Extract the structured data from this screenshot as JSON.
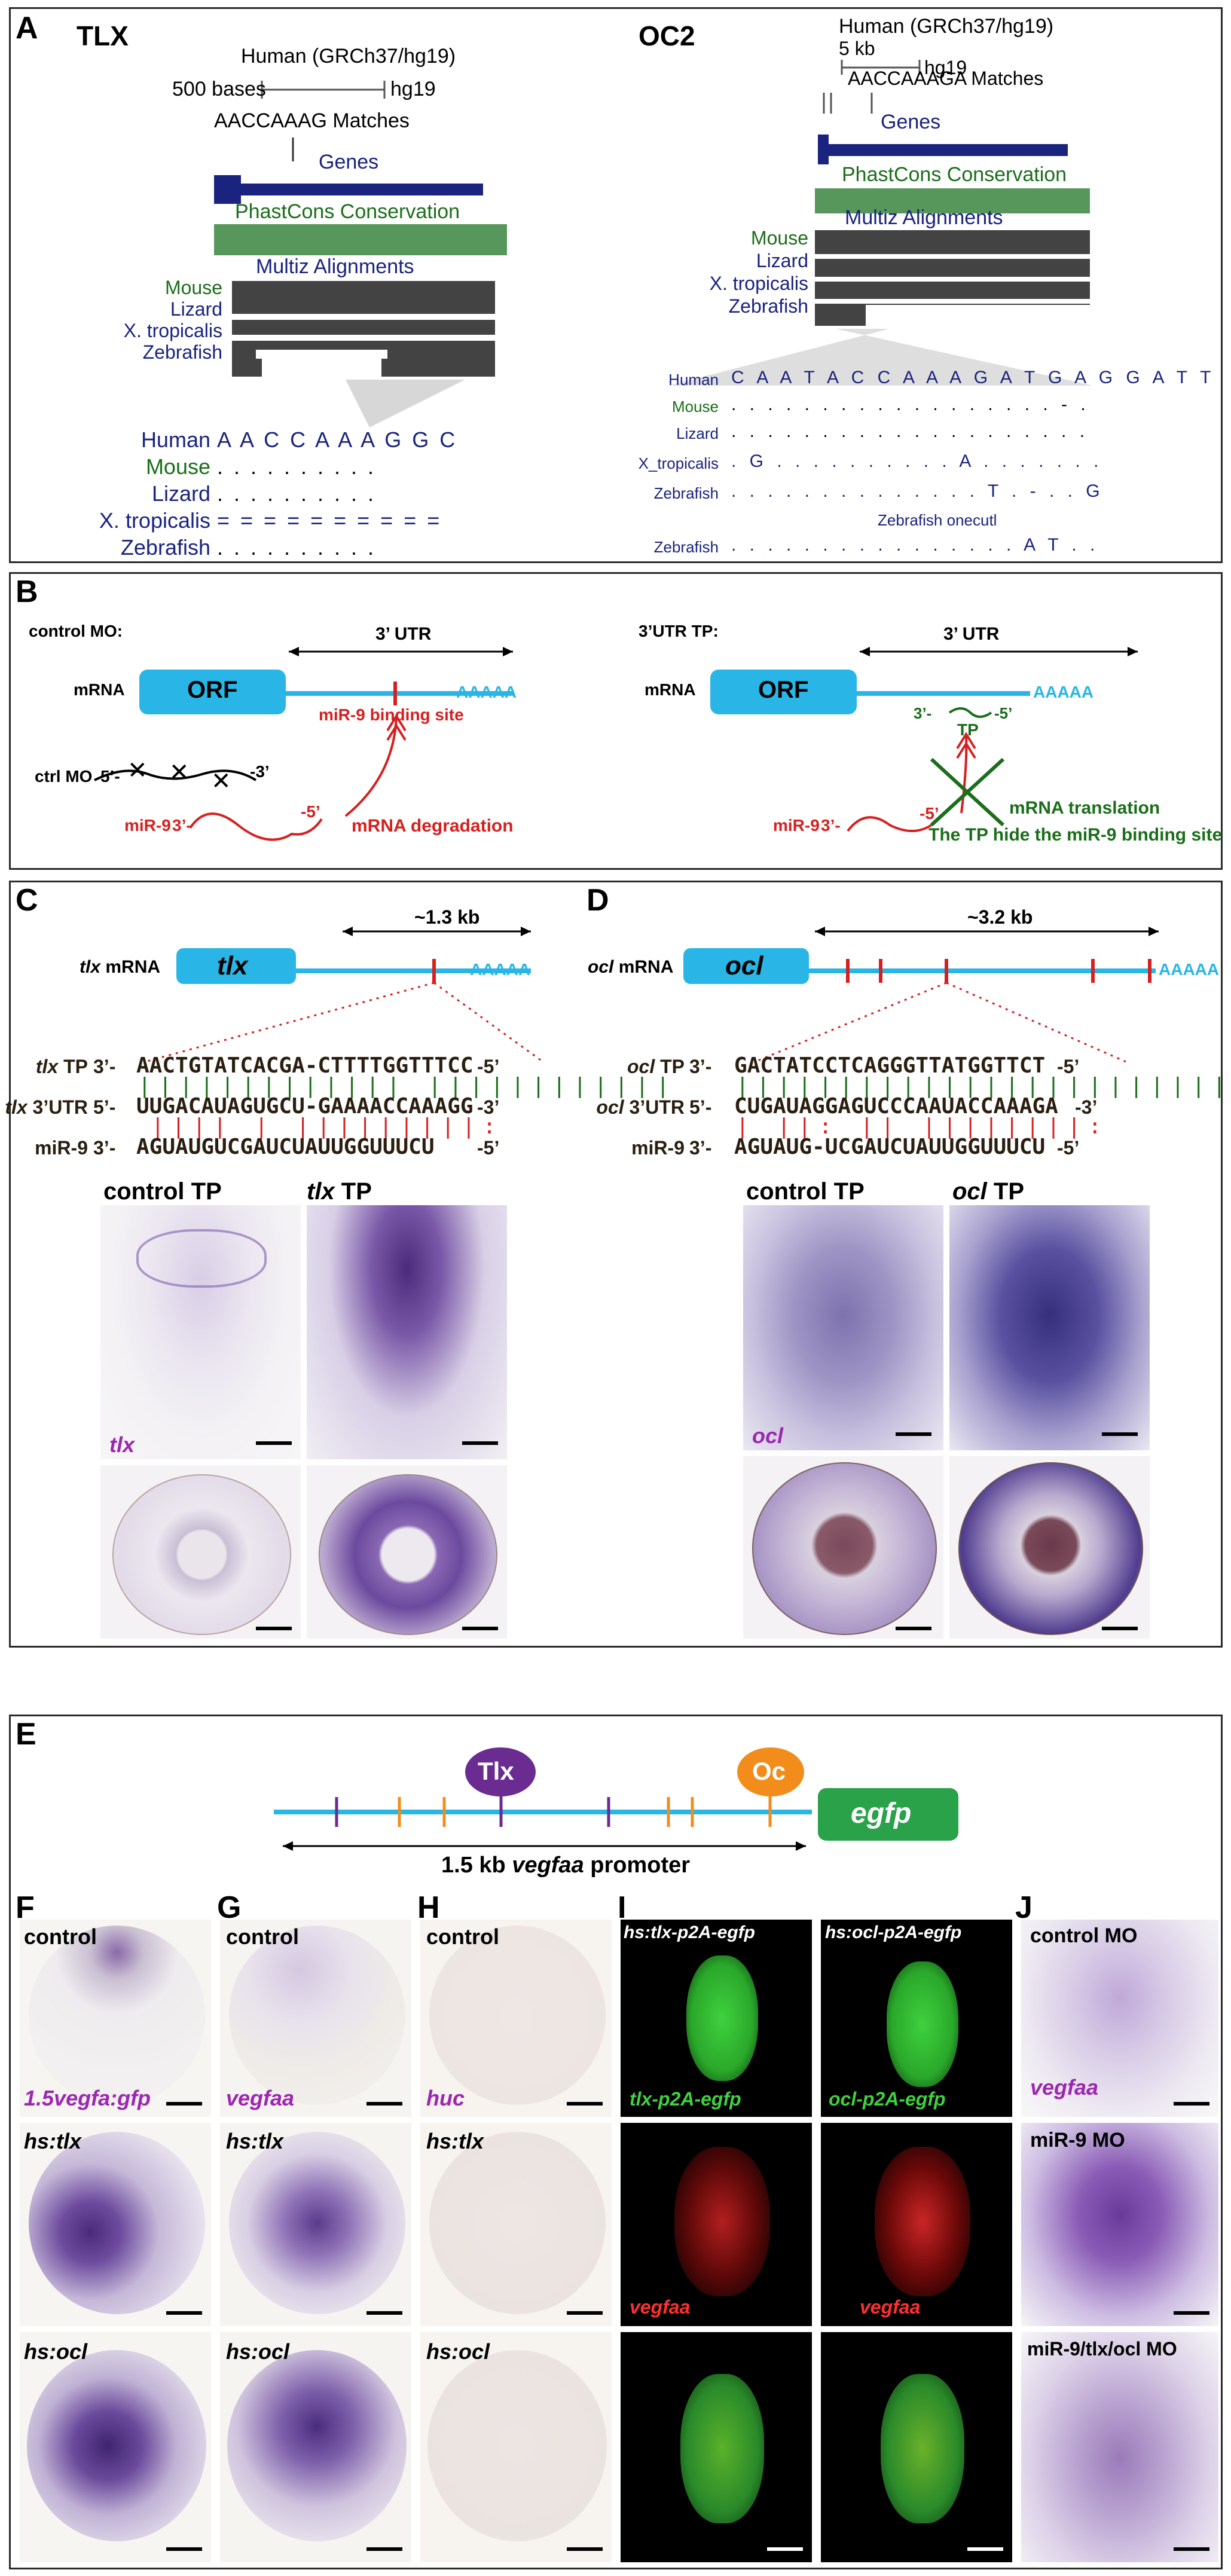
{
  "panelA": {
    "letter": "A",
    "tlx": {
      "title": "TLX",
      "assembly": "Human (GRCh37/hg19)",
      "scale": "500 bases",
      "build": "hg19",
      "matches": "AACCAAAG Matches",
      "genes": "Genes",
      "phastcons": "PhastCons Conservation",
      "multiz": "Multiz Alignments",
      "species": [
        "Mouse",
        "Lizard",
        "X. tropicalis",
        "Zebrafish"
      ],
      "align_rows": [
        {
          "name": "Human",
          "seq": "A A C C A A A G G C"
        },
        {
          "name": "Mouse",
          "seq": ". . . . . . . . . ."
        },
        {
          "name": "Lizard",
          "seq": ". . . . . . . . . ."
        },
        {
          "name": "X. tropicalis",
          "seq": "= = = = = = = = = ="
        },
        {
          "name": "Zebrafish",
          "seq": ". . . . . . . . . ."
        }
      ]
    },
    "oc2": {
      "title": "OC2",
      "assembly": "Human (GRCh37/hg19)",
      "scale": "5 kb",
      "build": "hg19",
      "matches": "AACCAAAGA Matches",
      "genes": "Genes",
      "phastcons": "PhastCons Conservation",
      "multiz": "Multiz Alignments",
      "species": [
        "Mouse",
        "Lizard",
        "X. tropicalis",
        "Zebrafish"
      ],
      "align_rows": [
        {
          "name": "Human",
          "seq": "C A A T A C C A A A G A T G A G G A T T"
        },
        {
          "name": "Mouse",
          "seq": ". . . . . . . . . . . . . . . . . . - ."
        },
        {
          "name": "Lizard",
          "seq": ". . . . . . . . . . . . . . . . . . . ."
        },
        {
          "name": "X_tropicalis",
          "seq": ". G . . . . . . . . . . A . . . . . . ."
        },
        {
          "name": "Zebrafish",
          "seq": ". . . . . . . . . . . . . . T . - . . G"
        }
      ],
      "onecut_label": "Zebrafish onecutl",
      "onecut_row": {
        "name": "Zebrafish",
        "seq": ". . . . . . . . . . . . . . . . A T . ."
      }
    }
  },
  "panelB": {
    "letter": "B",
    "left": {
      "title": "control MO:",
      "mrna": "mRNA",
      "orf": "ORF",
      "utr": "3’ UTR",
      "polya": "AAAAA",
      "site": "miR-9 binding site",
      "ctrl_label": "ctrl MO",
      "ctrl_5": "5’-",
      "ctrl_3": "-3’",
      "mir_label": "miR-9",
      "mir_3": "3’-",
      "mir_5": "-5’",
      "outcome": "mRNA degradation"
    },
    "right": {
      "title": "3’UTR TP:",
      "mrna": "mRNA",
      "orf": "ORF",
      "utr": "3’ UTR",
      "polya": "AAAAA",
      "tp": "TP",
      "tp_3": "3’-",
      "tp_5": "-5’",
      "mir_label": "miR-9",
      "mir_3": "3’-",
      "mir_5": "-5’",
      "outcome1": "mRNA translation",
      "outcome2": "The TP hide the miR-9 binding site"
    }
  },
  "panelC": {
    "letter": "C",
    "gene": "tlx",
    "mrna_label_gene": "tlx",
    "mrna_label": " mRNA",
    "utr_len": "~1.3 kb",
    "polya": "AAAAA",
    "rows": [
      {
        "gene": "tlx",
        "name": " TP",
        "p": "3’-",
        "seq": "AACTGTATCACGA-CTTTTGGTTTCC",
        "s": "-5’"
      },
      {
        "gene": "tlx",
        "name": " 3’UTR",
        "p": "5’-",
        "seq": "UUGACAUAGUGCU-GAAAACCAAAGG",
        "s": "-3’"
      },
      {
        "gene": "",
        "name": "miR-9",
        "p": "3’-",
        "seq": " AGUAUGUCGAUCUAUUGGUUUCU",
        "s": "-5’"
      }
    ],
    "control": "control TP",
    "treat_gene": "tlx",
    "treat": " TP",
    "probe": "tlx"
  },
  "panelD": {
    "letter": "D",
    "gene": "ocl",
    "mrna_label_gene": "ocl",
    "mrna_label": " mRNA",
    "utr_len": "~3.2 kb",
    "polya": "AAAAA",
    "rows": [
      {
        "gene": "ocl",
        "name": " TP",
        "p": "3’-",
        "seq": "GACTATCCTCAGGGTTATGGTTCT",
        "s": "-5’"
      },
      {
        "gene": "ocl",
        "name": " 3’UTR",
        "p": "5’-",
        "seq": "CUGAUAGGAGUCCCAAUACCAAAGA",
        "s": "-3’"
      },
      {
        "gene": "",
        "name": "miR-9",
        "p": "3’-",
        "seq": "AGUAUG-UCGAUCUAUUGGUUUCU",
        "s": "-5’"
      }
    ],
    "control": "control TP",
    "treat_gene": "ocl",
    "treat": " TP",
    "probe": "ocl"
  },
  "panelE": {
    "letter": "E",
    "tlx": "Tlx",
    "oc": "Oc",
    "egfp": "egfp",
    "promoter_pre": "1.5 kb ",
    "promoter_gene": "vegfaa",
    "promoter_post": " promoter"
  },
  "panelF": {
    "letter": "F",
    "control": "control",
    "probe": "1.5vegfa:gfp",
    "r2": "hs:tlx",
    "r3": "hs:ocl"
  },
  "panelG": {
    "letter": "G",
    "control": "control",
    "probe": "vegfaa",
    "r2": "hs:tlx",
    "r3": "hs:ocl"
  },
  "panelH": {
    "letter": "H",
    "control": "control",
    "probe": "huc",
    "r2": "hs:tlx",
    "r3": "hs:ocl"
  },
  "panelI": {
    "letter": "I",
    "col1": "hs:tlx-p2A-egfp",
    "col2": "hs:ocl-p2A-egfp",
    "g1": "tlx-p2A-egfp",
    "g2": "ocl-p2A-egfp",
    "r1": "vegfaa",
    "r2": "vegfaa"
  },
  "panelJ": {
    "letter": "J",
    "r1": "control MO",
    "probe": "vegfaa",
    "r2": "miR-9 MO",
    "r3": "miR-9/tlx/ocl MO"
  },
  "colors": {
    "navy": "#1a237e",
    "green": "#1b6e1b",
    "red": "#d62020",
    "cyan": "#29b6e6",
    "purple": "#6a2c91",
    "orange": "#f28c1a",
    "egfp_green": "#2aa24a"
  }
}
